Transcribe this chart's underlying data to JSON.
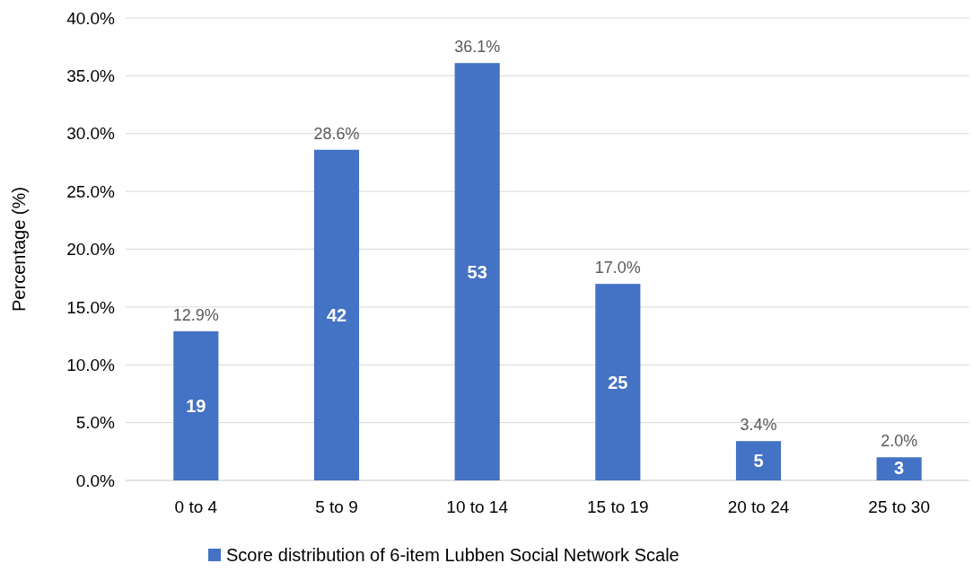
{
  "chart_data": {
    "type": "bar",
    "ylabel": "Percentage (%)",
    "categories": [
      "0 to 4",
      "5 to 9",
      "10 to 14",
      "15 to 19",
      "20 to 24",
      "25 to 30"
    ],
    "series": [
      {
        "name": "Score distribution of 6-item Lubben Social Network Scale",
        "color": "#4472c4",
        "values": [
          12.9,
          28.6,
          36.1,
          17.0,
          3.4,
          2.0
        ],
        "value_labels": [
          "12.9%",
          "28.6%",
          "36.1%",
          "17.0%",
          "3.4%",
          "2.0%"
        ]
      }
    ],
    "ylim": [
      0,
      40
    ],
    "yticks": [
      {
        "value": 0,
        "label": "0.0%"
      },
      {
        "value": 5,
        "label": "5.0%"
      },
      {
        "value": 10,
        "label": "10.0%"
      },
      {
        "value": 15,
        "label": "15.0%"
      },
      {
        "value": 20,
        "label": "20.0%"
      },
      {
        "value": 25,
        "label": "25.0%"
      },
      {
        "value": 30,
        "label": "30.0%"
      },
      {
        "value": 35,
        "label": "35.0%"
      },
      {
        "value": 40,
        "label": "40.0%"
      }
    ],
    "annotations": [
      "19",
      "42",
      "53",
      "25",
      "5",
      "3"
    ],
    "grid": "y",
    "legend": "bottom"
  }
}
